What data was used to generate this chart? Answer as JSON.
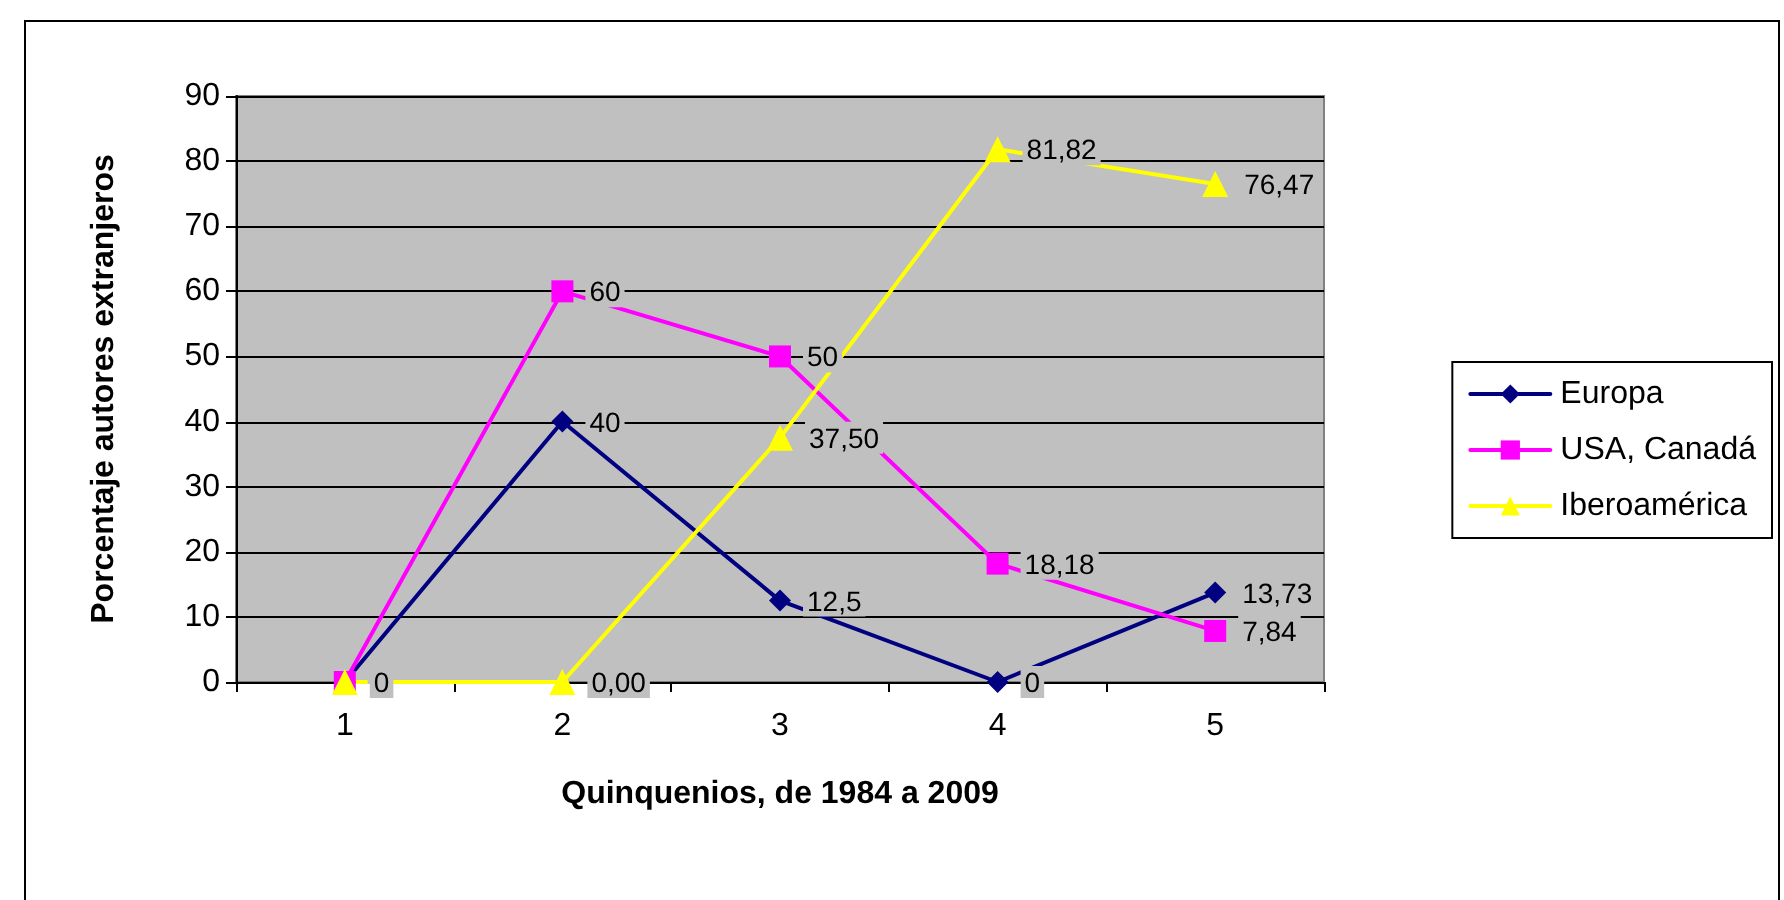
{
  "chart_data": {
    "type": "line",
    "xlabel": "Quinquenios, de 1984 a 2009",
    "ylabel": "Porcentaje autores extranjeros",
    "categories": [
      "1",
      "2",
      "3",
      "4",
      "5"
    ],
    "ylim": [
      0,
      90
    ],
    "yticks": [
      0,
      10,
      20,
      30,
      40,
      50,
      60,
      70,
      80,
      90
    ],
    "grid": "y",
    "legend": "right",
    "series": [
      {
        "name": "Europa",
        "color": "#000080",
        "marker": "diamond",
        "values": [
          0,
          40,
          12.5,
          0,
          13.73
        ],
        "value_labels": [
          null,
          "40",
          "12,5",
          "0",
          "13,73"
        ]
      },
      {
        "name": "USA, Canadá",
        "color": "#ff00ff",
        "marker": "square",
        "values": [
          0,
          60,
          50,
          18.18,
          7.84
        ],
        "value_labels": [
          null,
          "60",
          "50",
          "18,18",
          "7,84"
        ]
      },
      {
        "name": "Iberoamérica",
        "color": "#ffff00",
        "marker": "triangle",
        "values": [
          0,
          0,
          37.5,
          81.82,
          76.47
        ],
        "value_labels": [
          "0",
          "0,00",
          "37,50",
          "81,82",
          "76,47"
        ]
      }
    ]
  }
}
